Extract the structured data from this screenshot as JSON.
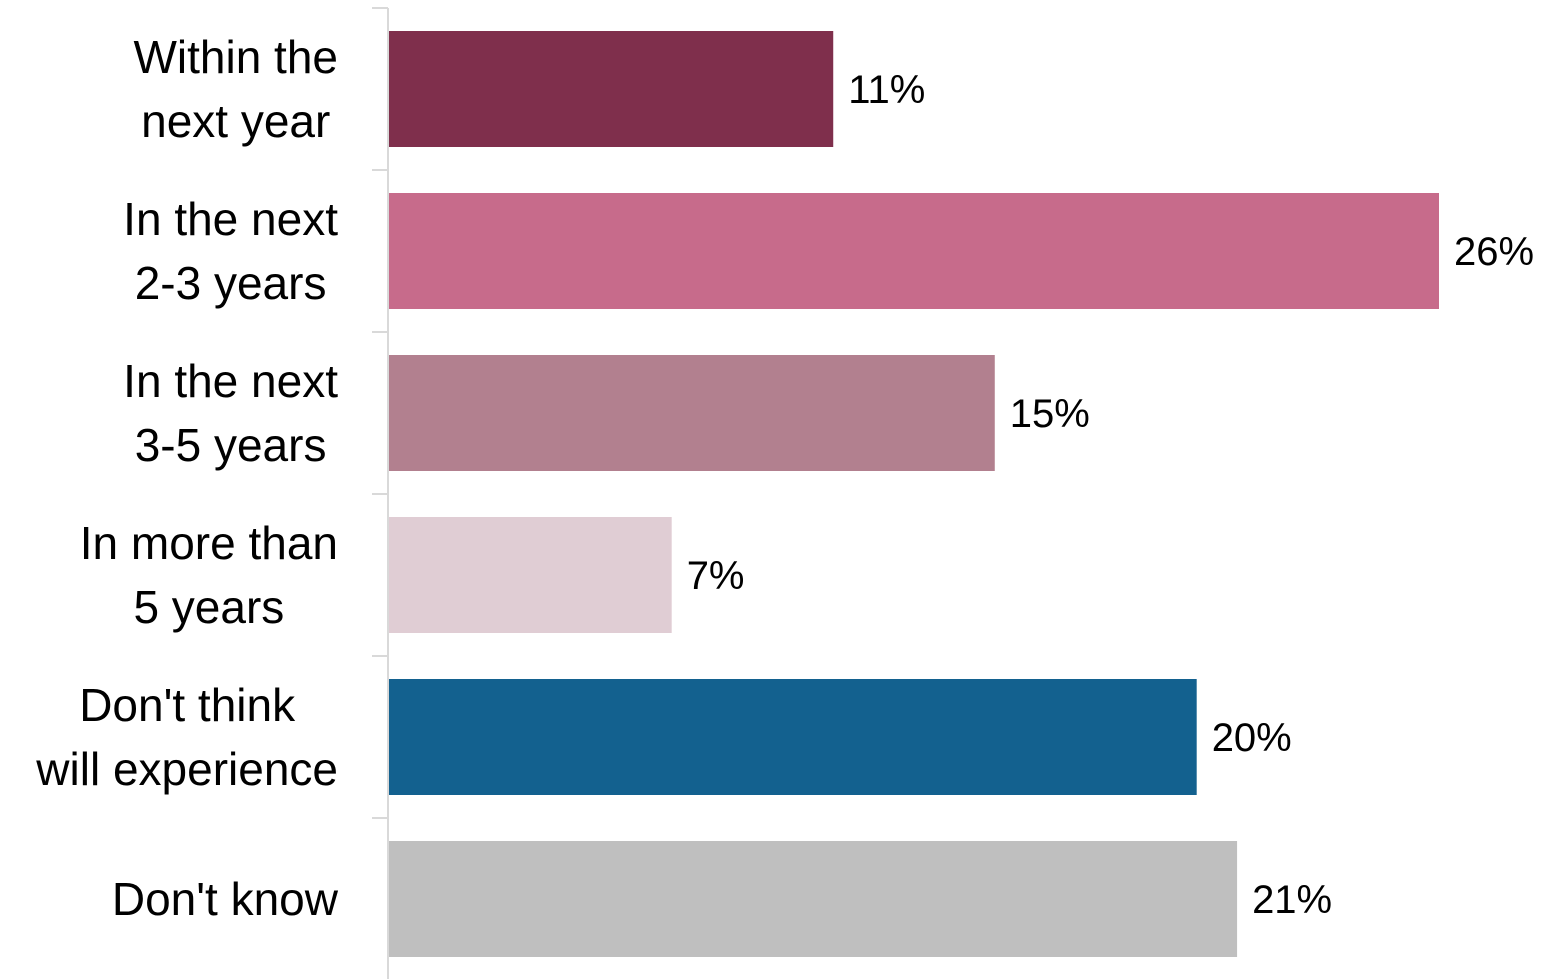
{
  "chart_data": {
    "type": "bar",
    "orientation": "horizontal",
    "categories": [
      [
        "Within the",
        "next year"
      ],
      [
        "In the next",
        "2-3 years"
      ],
      [
        "In the next",
        "3-5 years"
      ],
      [
        "In more than",
        "5 years"
      ],
      [
        "Don't think",
        "will experience"
      ],
      [
        "Don't know"
      ]
    ],
    "values": [
      11,
      26,
      15,
      7,
      20,
      21
    ],
    "value_labels": [
      "11%",
      "26%",
      "15%",
      "7%",
      "20%",
      "21%"
    ],
    "colors": [
      "#7f2f4c",
      "#c76b8b",
      "#b2808f",
      "#e0cdd4",
      "#13618f",
      "#bfbfbf"
    ],
    "xlim": [
      0,
      26
    ],
    "grid": false,
    "legend": "none"
  }
}
